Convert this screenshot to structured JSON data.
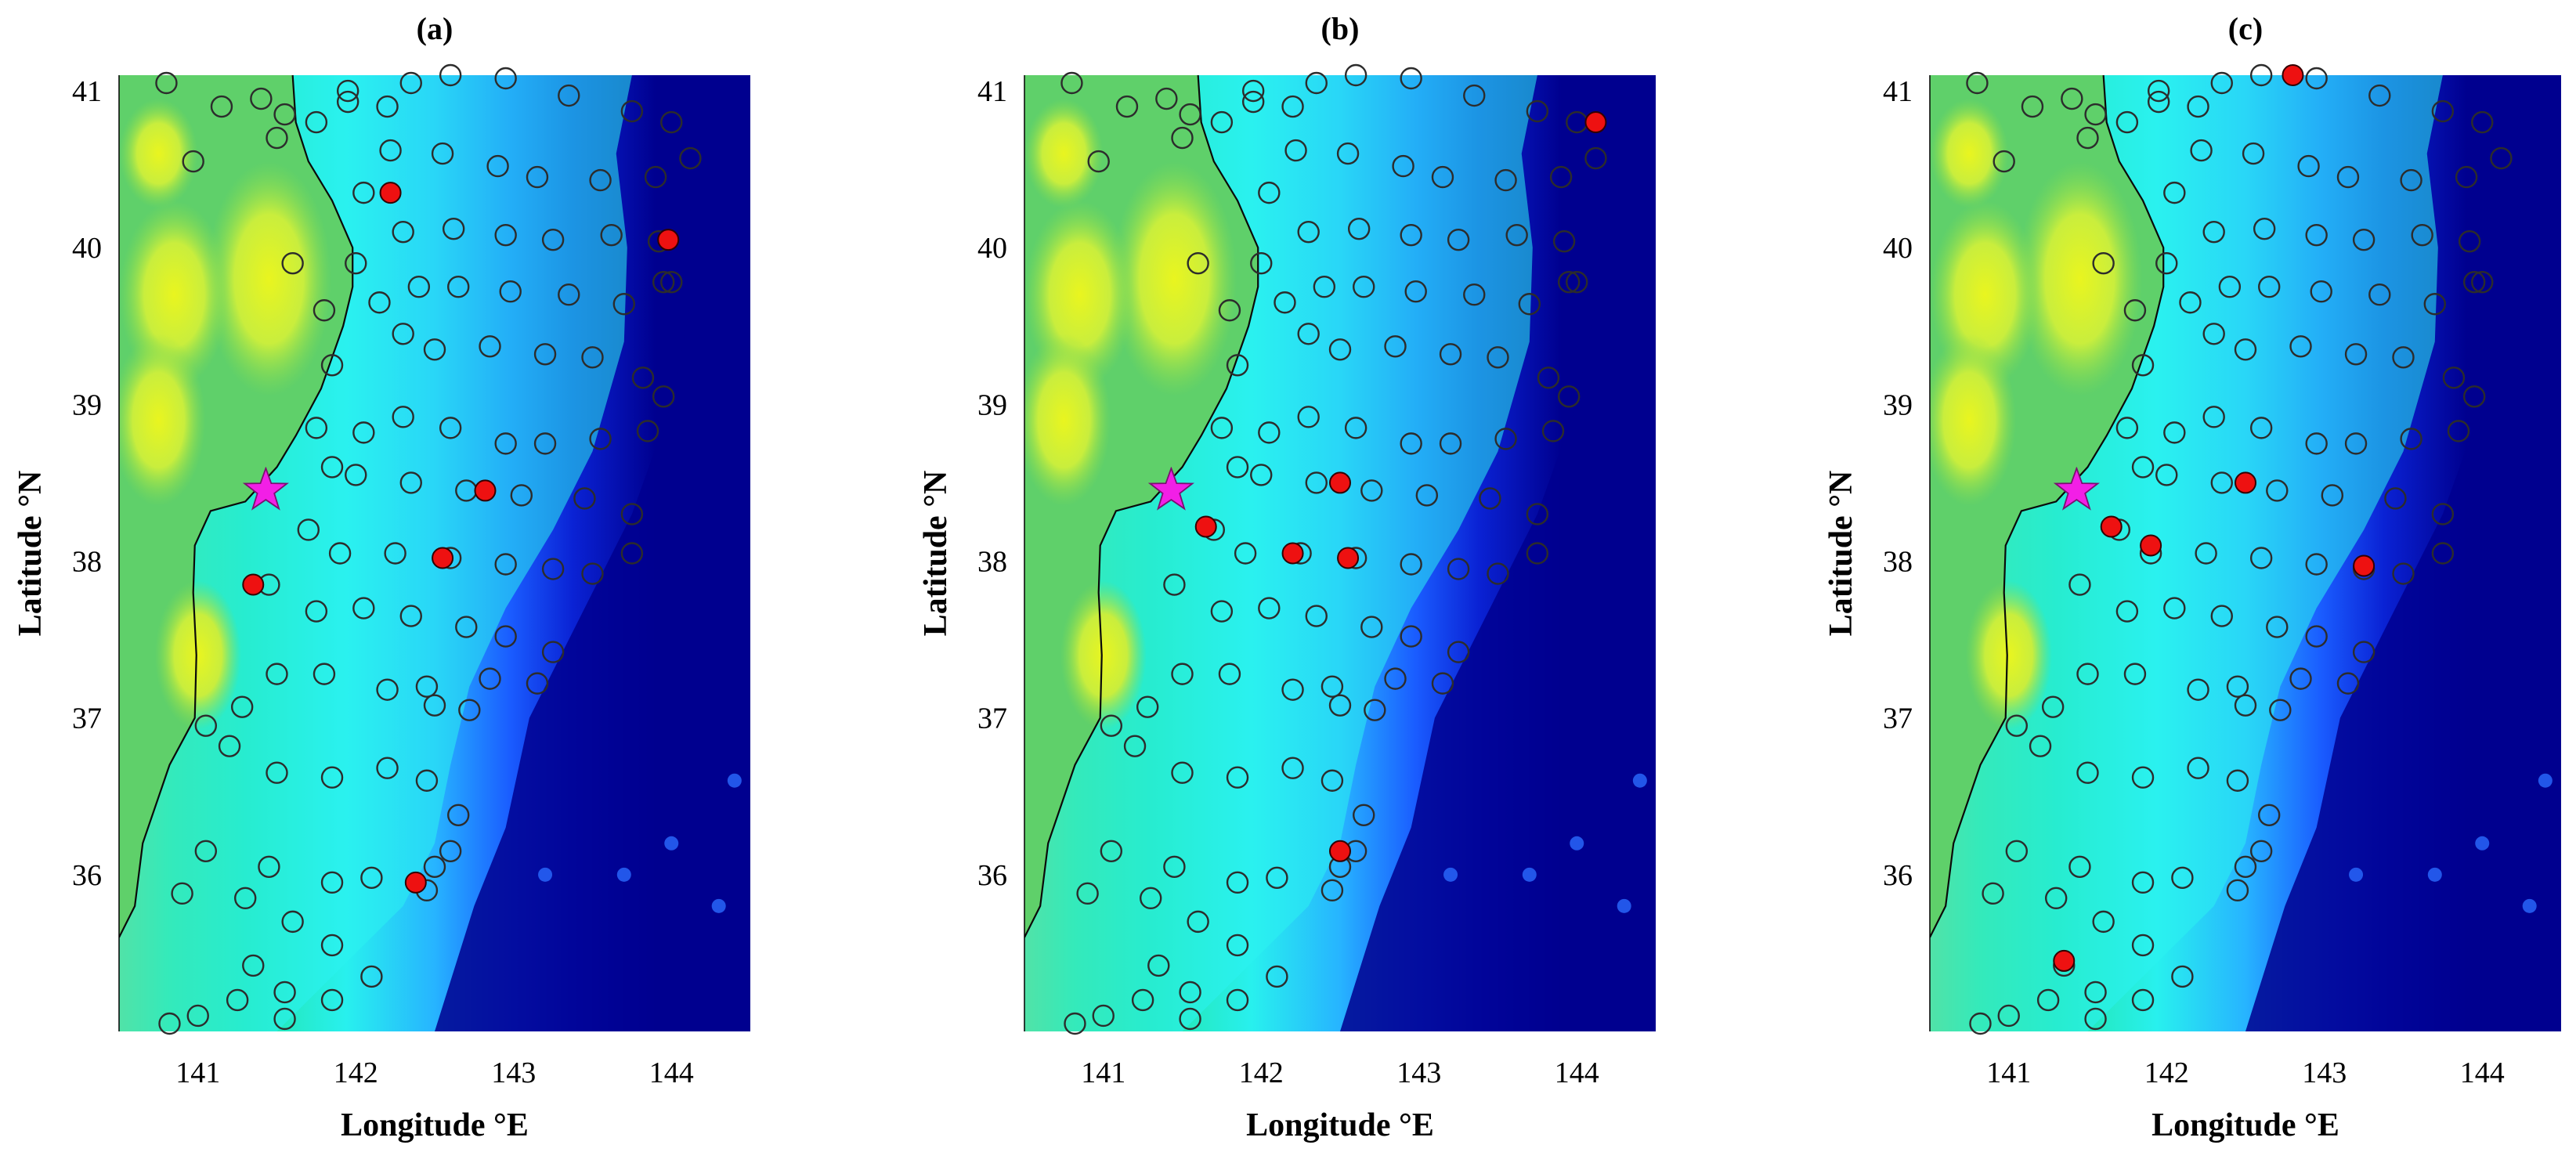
{
  "colors": {
    "star": "#f21fe6",
    "selected_station": "#ee1111",
    "station_outline": "#2c2c2c",
    "coastline": "#0a0a0a",
    "deep_ocean": "#00008f"
  },
  "map": {
    "lon_range": [
      140.5,
      144.5
    ],
    "lat_range": [
      35.0,
      41.1
    ],
    "lon_ticks": [
      "141",
      "142",
      "143",
      "144"
    ],
    "lat_ticks": [
      "36",
      "37",
      "38",
      "39",
      "40",
      "41"
    ],
    "xlabel": "Longitude °E",
    "ylabel": "Latitude °N",
    "epicenter": [
      141.43,
      38.45
    ]
  },
  "stations": [
    [
      140.8,
      41.05
    ],
    [
      140.97,
      40.55
    ],
    [
      141.15,
      40.9
    ],
    [
      141.4,
      40.95
    ],
    [
      141.55,
      40.85
    ],
    [
      141.5,
      40.7
    ],
    [
      141.95,
      41.0
    ],
    [
      142.35,
      41.05
    ],
    [
      142.6,
      41.1
    ],
    [
      142.95,
      41.08
    ],
    [
      143.35,
      40.97
    ],
    [
      143.75,
      40.87
    ],
    [
      144.0,
      40.8
    ],
    [
      141.75,
      40.8
    ],
    [
      141.95,
      40.93
    ],
    [
      142.2,
      40.9
    ],
    [
      142.22,
      40.62
    ],
    [
      142.55,
      40.6
    ],
    [
      142.9,
      40.52
    ],
    [
      143.15,
      40.45
    ],
    [
      143.55,
      40.43
    ],
    [
      143.9,
      40.45
    ],
    [
      144.12,
      40.57
    ],
    [
      142.05,
      40.35
    ],
    [
      142.3,
      40.1
    ],
    [
      142.62,
      40.12
    ],
    [
      142.95,
      40.08
    ],
    [
      143.25,
      40.05
    ],
    [
      143.62,
      40.08
    ],
    [
      143.92,
      40.04
    ],
    [
      144.0,
      39.78
    ],
    [
      141.6,
      39.9
    ],
    [
      141.8,
      39.6
    ],
    [
      142.0,
      39.9
    ],
    [
      142.15,
      39.65
    ],
    [
      142.4,
      39.75
    ],
    [
      142.65,
      39.75
    ],
    [
      142.98,
      39.72
    ],
    [
      143.35,
      39.7
    ],
    [
      143.7,
      39.64
    ],
    [
      143.95,
      39.78
    ],
    [
      141.85,
      39.25
    ],
    [
      142.3,
      39.45
    ],
    [
      142.5,
      39.35
    ],
    [
      142.85,
      39.37
    ],
    [
      143.2,
      39.32
    ],
    [
      143.5,
      39.3
    ],
    [
      143.82,
      39.17
    ],
    [
      143.95,
      39.05
    ],
    [
      141.75,
      38.85
    ],
    [
      142.05,
      38.82
    ],
    [
      142.3,
      38.92
    ],
    [
      142.6,
      38.85
    ],
    [
      142.95,
      38.75
    ],
    [
      143.2,
      38.75
    ],
    [
      143.55,
      38.78
    ],
    [
      143.85,
      38.83
    ],
    [
      141.85,
      38.6
    ],
    [
      142.0,
      38.55
    ],
    [
      142.35,
      38.5
    ],
    [
      142.7,
      38.45
    ],
    [
      143.05,
      38.42
    ],
    [
      143.45,
      38.4
    ],
    [
      143.75,
      38.3
    ],
    [
      141.7,
      38.2
    ],
    [
      141.9,
      38.05
    ],
    [
      142.25,
      38.05
    ],
    [
      142.6,
      38.02
    ],
    [
      142.95,
      37.98
    ],
    [
      143.25,
      37.95
    ],
    [
      143.5,
      37.92
    ],
    [
      143.75,
      38.05
    ],
    [
      141.45,
      37.85
    ],
    [
      141.75,
      37.68
    ],
    [
      142.05,
      37.7
    ],
    [
      142.35,
      37.65
    ],
    [
      142.7,
      37.58
    ],
    [
      142.95,
      37.52
    ],
    [
      143.25,
      37.42
    ],
    [
      141.5,
      37.28
    ],
    [
      141.8,
      37.28
    ],
    [
      142.2,
      37.18
    ],
    [
      142.45,
      37.2
    ],
    [
      142.85,
      37.25
    ],
    [
      143.15,
      37.22
    ],
    [
      141.05,
      36.95
    ],
    [
      141.28,
      37.07
    ],
    [
      141.2,
      36.82
    ],
    [
      141.5,
      36.65
    ],
    [
      141.85,
      36.62
    ],
    [
      142.2,
      36.68
    ],
    [
      142.45,
      36.6
    ],
    [
      142.5,
      37.08
    ],
    [
      142.72,
      37.05
    ],
    [
      141.05,
      36.15
    ],
    [
      140.9,
      35.88
    ],
    [
      141.3,
      35.85
    ],
    [
      141.45,
      36.05
    ],
    [
      141.6,
      35.7
    ],
    [
      141.85,
      35.95
    ],
    [
      142.1,
      35.98
    ],
    [
      142.45,
      35.9
    ],
    [
      142.65,
      36.38
    ],
    [
      142.6,
      36.15
    ],
    [
      141.35,
      35.42
    ],
    [
      141.55,
      35.25
    ],
    [
      141.85,
      35.2
    ],
    [
      141.85,
      35.55
    ],
    [
      142.1,
      35.35
    ],
    [
      142.5,
      36.05
    ],
    [
      140.82,
      35.05
    ],
    [
      141.0,
      35.1
    ],
    [
      141.25,
      35.2
    ],
    [
      141.55,
      35.08
    ]
  ],
  "panels": [
    {
      "label": "(a)",
      "selected": [
        [
          142.22,
          40.35
        ],
        [
          143.98,
          40.05
        ],
        [
          142.82,
          38.45
        ],
        [
          142.55,
          38.02
        ],
        [
          141.35,
          37.85
        ],
        [
          142.38,
          35.95
        ]
      ]
    },
    {
      "label": "(b)",
      "selected": [
        [
          144.12,
          40.8
        ],
        [
          141.65,
          38.22
        ],
        [
          142.5,
          38.5
        ],
        [
          142.2,
          38.05
        ],
        [
          142.55,
          38.02
        ],
        [
          142.5,
          36.15
        ]
      ]
    },
    {
      "label": "(c)",
      "selected": [
        [
          142.8,
          41.1
        ],
        [
          142.5,
          38.5
        ],
        [
          141.65,
          38.22
        ],
        [
          141.9,
          38.1
        ],
        [
          143.25,
          37.97
        ],
        [
          141.35,
          35.45
        ]
      ]
    }
  ]
}
